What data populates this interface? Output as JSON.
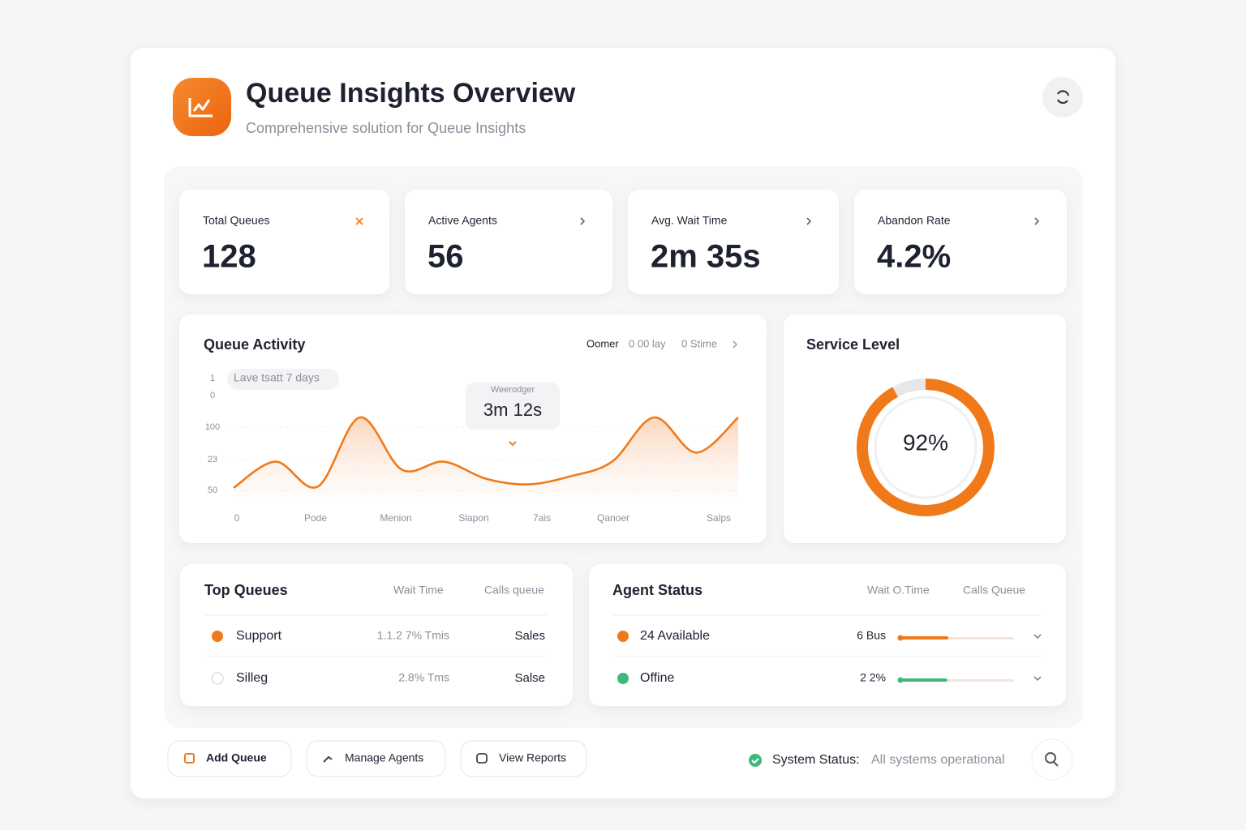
{
  "header": {
    "title": "Queue Insights Overview",
    "subtitle": "Comprehensive solution for Queue Insights"
  },
  "kpis": [
    {
      "label": "Total Queues",
      "value": "128"
    },
    {
      "label": "Active Agents",
      "value": "56"
    },
    {
      "label": "Avg. Wait Time",
      "value": "2m 35s"
    },
    {
      "label": "Abandon Rate",
      "value": "4.2%"
    }
  ],
  "activity": {
    "type": "line",
    "title": "Queue Activity",
    "filters": [
      "Oomer",
      "0 00 lay",
      "0 Stime"
    ],
    "range": "Lave tsatt 7 days",
    "tooltip": {
      "label": "Weerodger",
      "value": "3m 12s"
    },
    "y_labels": [
      "1",
      "0",
      "100",
      "23",
      "50"
    ],
    "x_labels": [
      "0",
      "Pode",
      "Menion",
      "Slapon",
      "7ais",
      "Qanoer",
      "Salps"
    ],
    "values": [
      13,
      36,
      14,
      75,
      29,
      36,
      21,
      16,
      23,
      36,
      75,
      44,
      75
    ],
    "ylim": [
      0,
      100
    ],
    "color": "#f07a1a"
  },
  "service_level": {
    "title": "Service Level",
    "value": 92,
    "label": "92%",
    "color": "#f07a1a"
  },
  "top_queues": {
    "title": "Top Queues",
    "columns": [
      "Wait Time",
      "Calls queue"
    ],
    "rows": [
      [
        "Support",
        "1.1.2 7% Tmis",
        "Sales"
      ],
      [
        "Silleg",
        "2.8% Tms",
        "Salse"
      ]
    ]
  },
  "agent_status": {
    "title": "Agent Status",
    "columns": [
      "Wait O.Time",
      "Calls Queue"
    ],
    "rows": [
      {
        "label": "24 Available",
        "value": "6 Bus",
        "progress": 43,
        "color": "#f07a1a"
      },
      {
        "label": "Offine",
        "value": "2 2%",
        "progress": 42,
        "color": "#3dba7a"
      }
    ]
  },
  "actions": [
    "Add Queue",
    "Manage Agents",
    "View Reports"
  ],
  "status": {
    "label": "System Status:",
    "text": "All systems operational"
  }
}
